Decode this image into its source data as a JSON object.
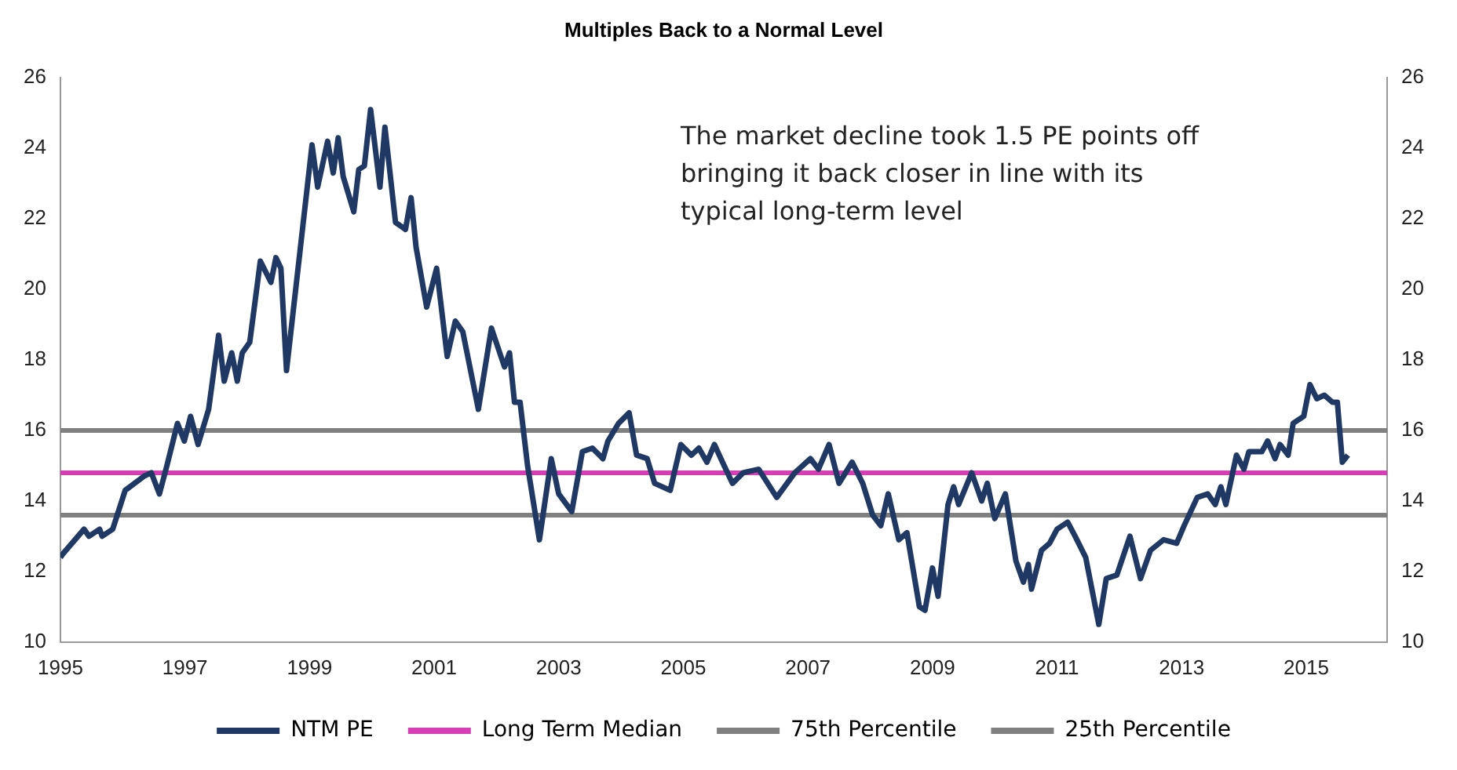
{
  "chart_data": {
    "type": "line",
    "title": "Multiples Back to a Normal Level",
    "xlim": [
      1995,
      2016.3
    ],
    "xticks": [
      1995,
      1997,
      1999,
      2001,
      2003,
      2005,
      2007,
      2009,
      2011,
      2013,
      2015
    ],
    "ylim": [
      10,
      26
    ],
    "yticks": [
      10,
      12,
      14,
      16,
      18,
      20,
      22,
      24,
      26
    ],
    "y2lim": [
      10,
      26
    ],
    "y2ticks": [
      10,
      12,
      14,
      16,
      18,
      20,
      22,
      24,
      26
    ],
    "grid": false,
    "legend": "bottom",
    "marker": "none",
    "line_style": "solid",
    "annotations": [
      "The market decline took 1.5 PE points off bringing it back closer in line with its typical long-term level"
    ],
    "series": [
      {
        "name": "NTM PE",
        "color": "#1f3864",
        "x": [
          1995,
          1995.04,
          1995.38,
          1995.46,
          1995.63,
          1995.67,
          1995.84,
          1996.04,
          1996.34,
          1996.46,
          1996.59,
          1996.71,
          1996.88,
          1996.99,
          1997.09,
          1997.21,
          1997.38,
          1997.54,
          1997.63,
          1997.75,
          1997.84,
          1997.92,
          1998.04,
          1998.21,
          1998.38,
          1998.46,
          1998.54,
          1998.63,
          1999.04,
          1999.13,
          1999.29,
          1999.38,
          1999.46,
          1999.54,
          1999.71,
          1999.79,
          1999.88,
          1999.98,
          2000.13,
          2000.21,
          2000.38,
          2000.54,
          2000.63,
          2000.71,
          2000.88,
          2001.04,
          2001.21,
          2001.34,
          2001.46,
          2001.71,
          2001.92,
          2002.13,
          2002.21,
          2002.29,
          2002.38,
          2002.5,
          2002.69,
          2002.88,
          2003.0,
          2003.21,
          2003.38,
          2003.54,
          2003.71,
          2003.79,
          2003.96,
          2004.13,
          2004.25,
          2004.42,
          2004.54,
          2004.79,
          2004.96,
          2005.13,
          2005.25,
          2005.38,
          2005.5,
          2005.63,
          2005.79,
          2005.96,
          2006.21,
          2006.5,
          2006.79,
          2007.04,
          2007.17,
          2007.34,
          2007.5,
          2007.71,
          2007.88,
          2008.04,
          2008.17,
          2008.29,
          2008.46,
          2008.59,
          2008.79,
          2008.88,
          2009.0,
          2009.09,
          2009.25,
          2009.34,
          2009.42,
          2009.63,
          2009.79,
          2009.88,
          2010.0,
          2010.17,
          2010.34,
          2010.46,
          2010.54,
          2010.59,
          2010.75,
          2010.88,
          2011.0,
          2011.17,
          2011.29,
          2011.46,
          2011.67,
          2011.79,
          2011.96,
          2012.17,
          2012.34,
          2012.5,
          2012.71,
          2012.92,
          2013.04,
          2013.25,
          2013.42,
          2013.54,
          2013.63,
          2013.71,
          2013.88,
          2014.0,
          2014.08,
          2014.29,
          2014.38,
          2014.5,
          2014.58,
          2014.71,
          2014.79,
          2014.96,
          2015.06,
          2015.17,
          2015.29,
          2015.42,
          2015.5,
          2015.58,
          2015.67
        ],
        "values": [
          12.4,
          12.5,
          13.2,
          13.0,
          13.2,
          13.0,
          13.2,
          14.3,
          14.7,
          14.8,
          14.2,
          15.0,
          16.2,
          15.7,
          16.4,
          15.6,
          16.6,
          18.7,
          17.4,
          18.2,
          17.4,
          18.2,
          18.5,
          20.8,
          20.2,
          20.9,
          20.6,
          17.7,
          24.1,
          22.9,
          24.2,
          23.3,
          24.3,
          23.2,
          22.2,
          23.4,
          23.5,
          25.1,
          22.9,
          24.6,
          21.9,
          21.7,
          22.6,
          21.2,
          19.5,
          20.6,
          18.1,
          19.1,
          18.8,
          16.6,
          18.9,
          17.8,
          18.2,
          16.8,
          16.8,
          15.0,
          12.9,
          15.2,
          14.2,
          13.7,
          15.4,
          15.5,
          15.2,
          15.7,
          16.2,
          16.5,
          15.3,
          15.2,
          14.5,
          14.3,
          15.6,
          15.3,
          15.5,
          15.1,
          15.6,
          15.1,
          14.5,
          14.8,
          14.9,
          14.1,
          14.8,
          15.2,
          14.9,
          15.6,
          14.5,
          15.1,
          14.5,
          13.6,
          13.3,
          14.2,
          12.9,
          13.1,
          11.0,
          10.9,
          12.1,
          11.3,
          13.9,
          14.4,
          13.9,
          14.8,
          14.0,
          14.5,
          13.5,
          14.2,
          12.3,
          11.7,
          12.2,
          11.5,
          12.6,
          12.8,
          13.2,
          13.4,
          13.0,
          12.4,
          10.5,
          11.8,
          11.9,
          13.0,
          11.8,
          12.6,
          12.9,
          12.8,
          13.3,
          14.1,
          14.2,
          13.9,
          14.4,
          13.9,
          15.3,
          14.9,
          15.4,
          15.4,
          15.7,
          15.2,
          15.6,
          15.3,
          16.2,
          16.4,
          17.3,
          16.9,
          17.0,
          16.8,
          16.8,
          15.1,
          15.3
        ]
      }
    ],
    "ref_lines": [
      {
        "axis": "y",
        "value": 14.8,
        "label": "Long Term Median",
        "color": "#d63fb4",
        "line_style": "solid"
      },
      {
        "axis": "y",
        "value": 16,
        "label": "75th Percentile",
        "color": "#808080",
        "line_style": "solid"
      },
      {
        "axis": "y",
        "value": 13.6,
        "label": "25th Percentile",
        "color": "#808080",
        "line_style": "solid"
      }
    ]
  }
}
